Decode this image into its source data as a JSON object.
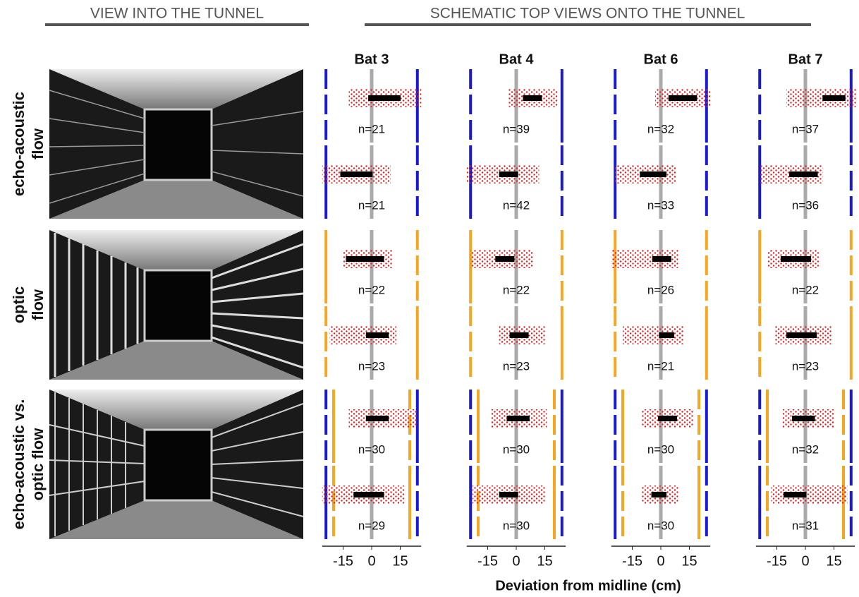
{
  "chart_data": {
    "type": "strip",
    "header_left": "VIEW INTO THE TUNNEL",
    "header_right": "SCHEMATIC TOP VIEWS ONTO THE TUNNEL",
    "bats": [
      "Bat 3",
      "Bat 4",
      "Bat 6",
      "Bat 7"
    ],
    "xlim": [
      -26,
      26
    ],
    "xticks": [
      -15,
      0,
      15
    ],
    "xlabel": "Deviation from midline (cm)",
    "groups": [
      {
        "label_lines": [
          "echo-acoustic",
          "flow"
        ],
        "color": "#1a1ad0"
      },
      {
        "label_lines": [
          "optic",
          "flow"
        ],
        "color": "#f5a623"
      },
      {
        "label_lines": [
          "echo-acoustic vs.",
          "optic flow"
        ],
        "color": "#111111"
      }
    ],
    "rows": [
      {
        "walls": [
          {
            "x": -24,
            "color": "#1a1ad0",
            "dashed": true
          },
          {
            "x": 24,
            "color": "#1a1ad0",
            "dashed": false
          }
        ],
        "panels": [
          {
            "n": "n=21",
            "mean": 6.7,
            "sd": 8.5,
            "range": [
              -12,
              26
            ]
          },
          {
            "n": "n=39",
            "mean": 8.5,
            "sd": 5,
            "range": [
              -4,
              22
            ]
          },
          {
            "n": "n=32",
            "mean": 11.5,
            "sd": 7.5,
            "range": [
              -3,
              26
            ]
          },
          {
            "n": "n=37",
            "mean": 15,
            "sd": 6,
            "range": [
              -10,
              27
            ]
          }
        ]
      },
      {
        "walls": [
          {
            "x": -24,
            "color": "#1a1ad0",
            "dashed": false
          },
          {
            "x": 24,
            "color": "#1a1ad0",
            "dashed": true
          }
        ],
        "panels": [
          {
            "n": "n=21",
            "mean": -8,
            "sd": 8.5,
            "range": [
              -26,
              10
            ]
          },
          {
            "n": "n=42",
            "mean": -4,
            "sd": 5,
            "range": [
              -26,
              12
            ]
          },
          {
            "n": "n=33",
            "mean": -4,
            "sd": 7,
            "range": [
              -24,
              8
            ]
          },
          {
            "n": "n=36",
            "mean": -1,
            "sd": 7.5,
            "range": [
              -24,
              9
            ]
          }
        ]
      },
      {
        "walls": [
          {
            "x": -24,
            "color": "#f5a623",
            "dashed": false
          },
          {
            "x": 24,
            "color": "#f5a623",
            "dashed": true
          }
        ],
        "panels": [
          {
            "n": "n=22",
            "mean": -3.5,
            "sd": 10,
            "range": [
              -15,
              11
            ]
          },
          {
            "n": "n=22",
            "mean": -6,
            "sd": 5,
            "range": [
              -24,
              9
            ]
          },
          {
            "n": "n=26",
            "mean": 0.5,
            "sd": 5,
            "range": [
              -26,
              9
            ]
          },
          {
            "n": "n=22",
            "mean": -5,
            "sd": 8,
            "range": [
              -20,
              7
            ]
          }
        ]
      },
      {
        "walls": [
          {
            "x": -24,
            "color": "#f5a623",
            "dashed": true
          },
          {
            "x": 24,
            "color": "#f5a623",
            "dashed": false
          }
        ],
        "panels": [
          {
            "n": "n=23",
            "mean": 3,
            "sd": 6,
            "range": [
              -22,
              13
            ]
          },
          {
            "n": "n=23",
            "mean": 1.5,
            "sd": 5,
            "range": [
              -9,
              15
            ]
          },
          {
            "n": "n=21",
            "mean": 3,
            "sd": 4,
            "range": [
              -20,
              12
            ]
          },
          {
            "n": "n=23",
            "mean": -2,
            "sd": 8,
            "range": [
              -16,
              14
            ]
          }
        ]
      },
      {
        "walls": [
          {
            "x": -24,
            "color": "#1a1ad0",
            "dashed": true
          },
          {
            "x": -20,
            "color": "#f5a623",
            "dashed": false
          },
          {
            "x": 20,
            "color": "#f5a623",
            "dashed": true
          },
          {
            "x": 24,
            "color": "#1a1ad0",
            "dashed": false
          }
        ],
        "panels": [
          {
            "n": "n=30",
            "mean": 3,
            "sd": 6,
            "range": [
              -12,
              24
            ]
          },
          {
            "n": "n=30",
            "mean": 1,
            "sd": 6,
            "range": [
              -13,
              16
            ]
          },
          {
            "n": "n=30",
            "mean": 3.5,
            "sd": 5,
            "range": [
              -10,
              17
            ]
          },
          {
            "n": "n=32",
            "mean": -1,
            "sd": 6,
            "range": [
              -12,
              15
            ]
          }
        ]
      },
      {
        "walls": [
          {
            "x": -24,
            "color": "#1a1ad0",
            "dashed": false
          },
          {
            "x": -20,
            "color": "#f5a623",
            "dashed": true
          },
          {
            "x": 20,
            "color": "#f5a623",
            "dashed": false
          },
          {
            "x": 24,
            "color": "#1a1ad0",
            "dashed": true
          }
        ],
        "panels": [
          {
            "n": "n=29",
            "mean": -1.5,
            "sd": 8,
            "range": [
              -26,
              17
            ]
          },
          {
            "n": "n=30",
            "mean": -4,
            "sd": 5,
            "range": [
              -23,
              15
            ]
          },
          {
            "n": "n=30",
            "mean": -1,
            "sd": 4,
            "range": [
              -10,
              9
            ]
          },
          {
            "n": "n=31",
            "mean": -5.5,
            "sd": 6,
            "range": [
              -18,
              22
            ]
          }
        ]
      }
    ]
  }
}
